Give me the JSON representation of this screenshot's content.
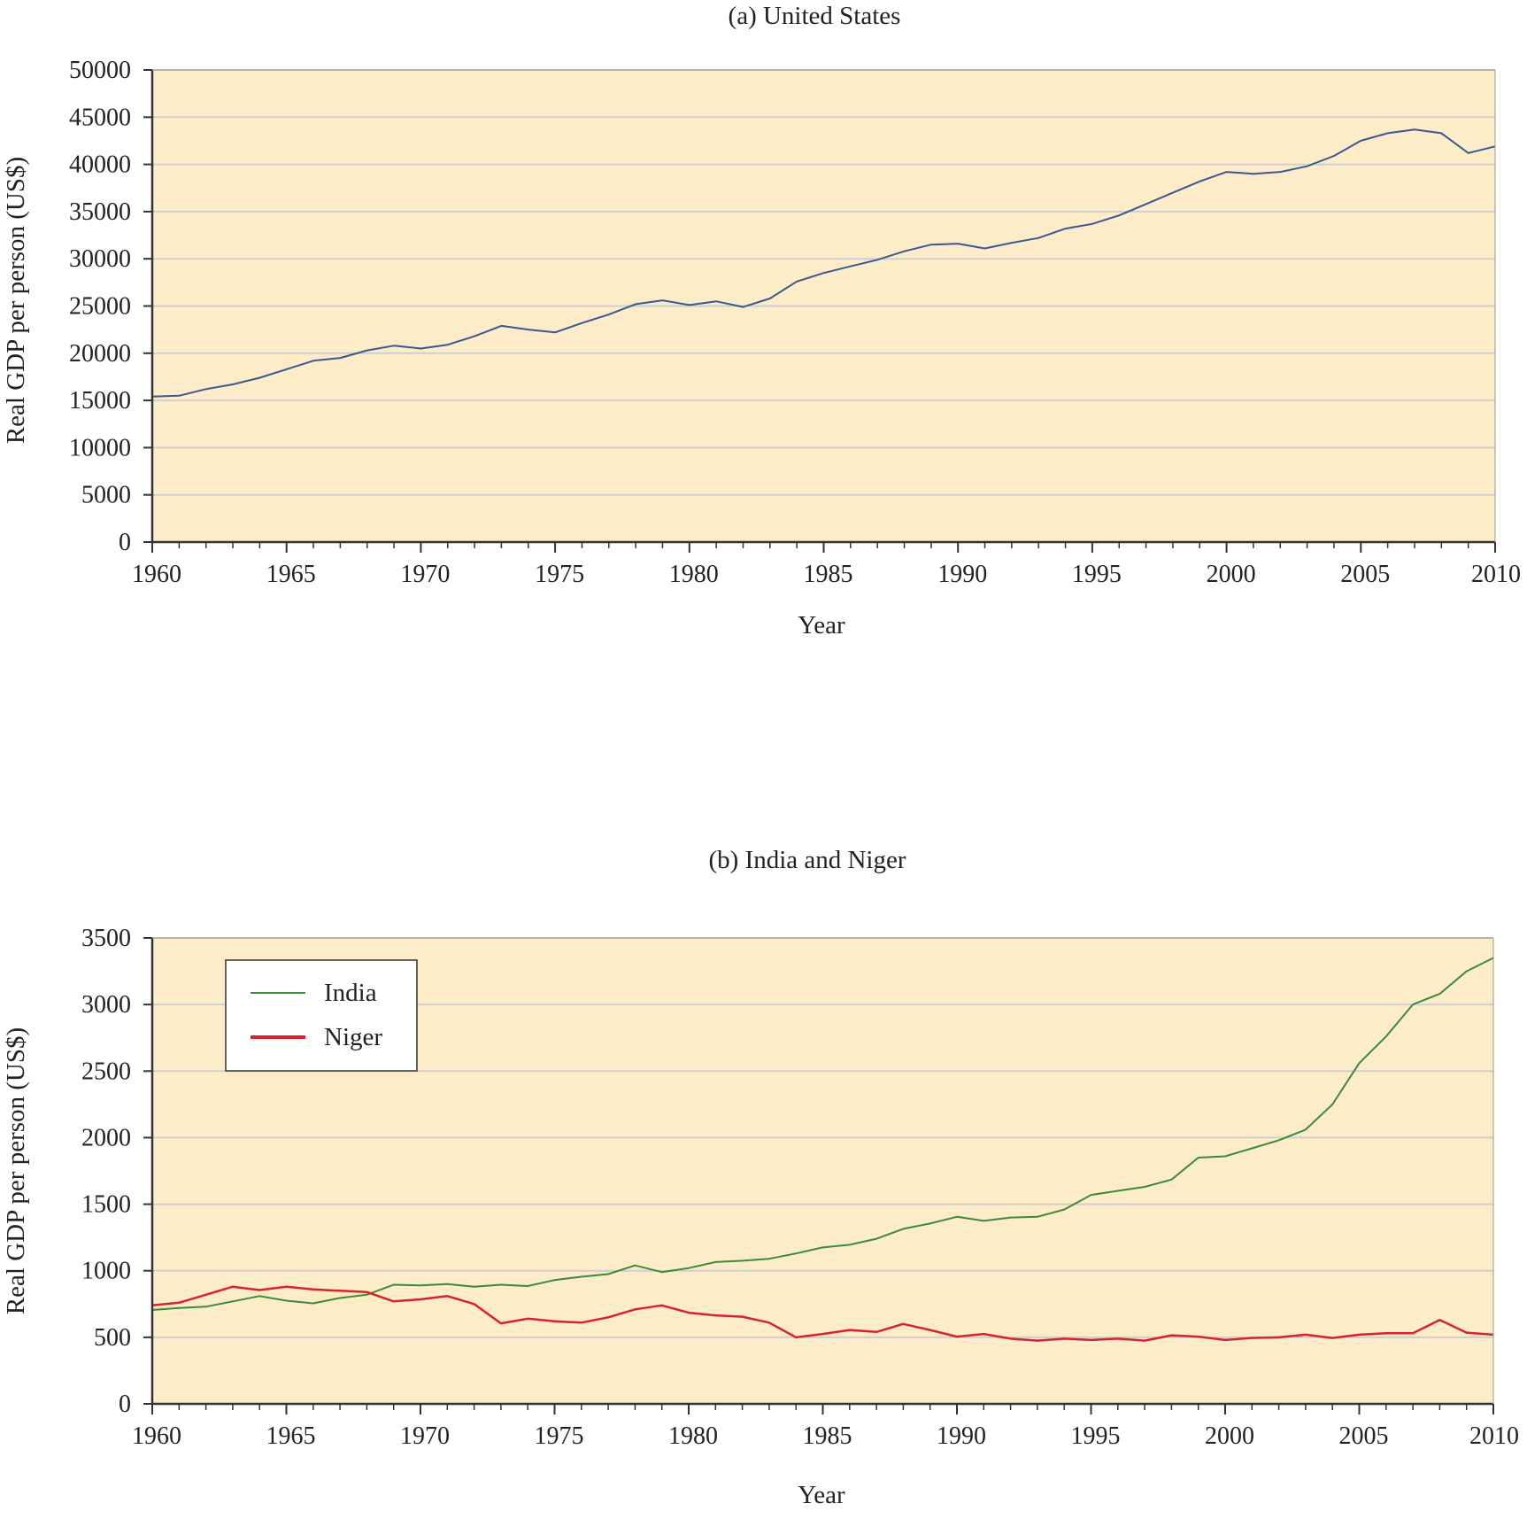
{
  "colors": {
    "plot_background": "#fcedc8",
    "grid": "#cfcfcf",
    "axis": "#333333",
    "us_line": "#3a5891",
    "india_line": "#3d8a3a",
    "niger_line": "#d8232a"
  },
  "chart_data": [
    {
      "type": "line",
      "title": "(a) United States",
      "xlabel": "Year",
      "ylabel": "Real GDP  per person (US$)",
      "xlim": [
        1960,
        2010
      ],
      "ylim": [
        0,
        50000
      ],
      "xticks": [
        1960,
        1965,
        1970,
        1975,
        1980,
        1985,
        1990,
        1995,
        2000,
        2005,
        2010
      ],
      "yticks": [
        0,
        5000,
        10000,
        15000,
        20000,
        25000,
        30000,
        35000,
        40000,
        45000,
        50000
      ],
      "grid": true,
      "legend": "none",
      "x": [
        1960,
        1961,
        1962,
        1963,
        1964,
        1965,
        1966,
        1967,
        1968,
        1969,
        1970,
        1971,
        1972,
        1973,
        1974,
        1975,
        1976,
        1977,
        1978,
        1979,
        1980,
        1981,
        1982,
        1983,
        1984,
        1985,
        1986,
        1987,
        1988,
        1989,
        1990,
        1991,
        1992,
        1993,
        1994,
        1995,
        1996,
        1997,
        1998,
        1999,
        2000,
        2001,
        2002,
        2003,
        2004,
        2005,
        2006,
        2007,
        2008,
        2009,
        2010
      ],
      "series": [
        {
          "color": "#3a5891",
          "values": [
            15400,
            15500,
            16200,
            16700,
            17400,
            18300,
            19200,
            19500,
            20300,
            20800,
            20500,
            20900,
            21800,
            22900,
            22500,
            22200,
            23200,
            24100,
            25200,
            25600,
            25100,
            25500,
            24900,
            25800,
            27600,
            28500,
            29200,
            29900,
            30800,
            31500,
            31600,
            31100,
            31700,
            32200,
            33200,
            33700,
            34600,
            35800,
            37000,
            38200,
            39200,
            39000,
            39200,
            39800,
            40900,
            42500,
            43300,
            43700,
            43300,
            41200,
            41900
          ]
        }
      ]
    },
    {
      "type": "line",
      "title": "(b) India and Niger",
      "xlabel": "Year",
      "ylabel": "Real GDP  per person (US$)",
      "xlim": [
        1960,
        2010
      ],
      "ylim": [
        0,
        3500
      ],
      "xticks": [
        1960,
        1965,
        1970,
        1975,
        1980,
        1985,
        1990,
        1995,
        2000,
        2005,
        2010
      ],
      "yticks": [
        0,
        500,
        1000,
        1500,
        2000,
        2500,
        3000,
        3500
      ],
      "grid": true,
      "legend": "top-left",
      "x": [
        1960,
        1961,
        1962,
        1963,
        1964,
        1965,
        1966,
        1967,
        1968,
        1969,
        1970,
        1971,
        1972,
        1973,
        1974,
        1975,
        1976,
        1977,
        1978,
        1979,
        1980,
        1981,
        1982,
        1983,
        1984,
        1985,
        1986,
        1987,
        1988,
        1989,
        1990,
        1991,
        1992,
        1993,
        1994,
        1995,
        1996,
        1997,
        1998,
        1999,
        2000,
        2001,
        2002,
        2003,
        2004,
        2005,
        2006,
        2007,
        2008,
        2009,
        2010
      ],
      "series": [
        {
          "name": "India",
          "color": "#3d8a3a",
          "width": 2,
          "values": [
            705,
            720,
            730,
            770,
            810,
            775,
            755,
            795,
            820,
            895,
            890,
            900,
            880,
            895,
            885,
            930,
            955,
            975,
            1040,
            990,
            1020,
            1065,
            1075,
            1090,
            1130,
            1175,
            1195,
            1240,
            1315,
            1355,
            1405,
            1375,
            1400,
            1405,
            1460,
            1570,
            1600,
            1630,
            1685,
            1850,
            1860,
            1920,
            1980,
            2060,
            2250,
            2560,
            2760,
            3000,
            3080,
            3250,
            3350
          ]
        },
        {
          "name": "Niger",
          "color": "#d8232a",
          "width": 2.5,
          "values": [
            740,
            760,
            820,
            880,
            855,
            880,
            860,
            850,
            840,
            770,
            785,
            810,
            750,
            605,
            640,
            620,
            610,
            650,
            710,
            740,
            685,
            665,
            655,
            610,
            500,
            525,
            555,
            540,
            600,
            555,
            505,
            525,
            490,
            475,
            490,
            480,
            490,
            475,
            515,
            505,
            480,
            495,
            500,
            520,
            495,
            520,
            530,
            530,
            630,
            535,
            520
          ]
        }
      ]
    }
  ]
}
